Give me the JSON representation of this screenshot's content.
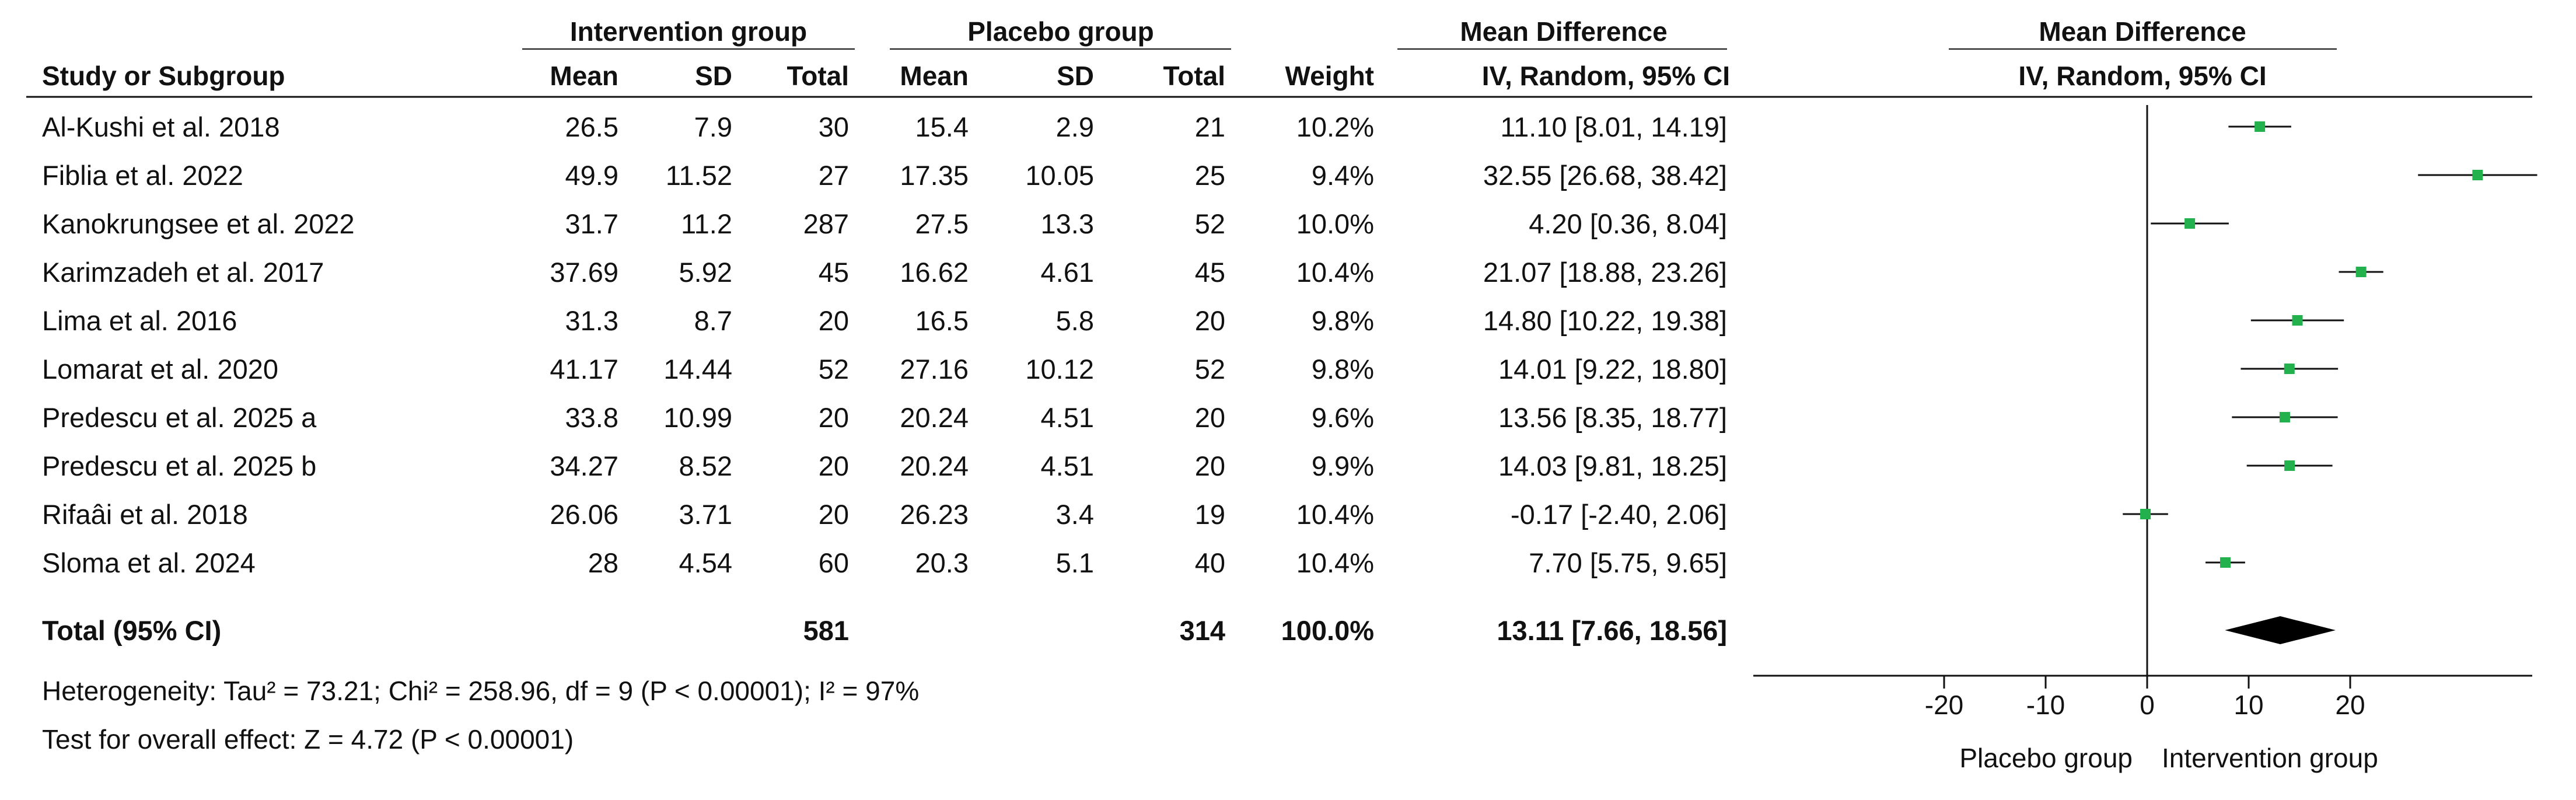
{
  "table": {
    "group_headers": {
      "intervention": "Intervention group",
      "placebo": "Placebo group",
      "effect": "Mean Difference",
      "plot": "Mean Difference"
    },
    "column_headers": {
      "study": "Study or Subgroup",
      "int_mean": "Mean",
      "int_sd": "SD",
      "int_total": "Total",
      "pla_mean": "Mean",
      "pla_sd": "SD",
      "pla_total": "Total",
      "weight": "Weight",
      "ci": "IV, Random, 95% CI",
      "plot_ci": "IV, Random, 95% CI"
    },
    "rows": [
      {
        "study": "Al-Kushi et al. 2018",
        "int_mean": "26.5",
        "int_sd": "7.9",
        "int_total": "30",
        "pla_mean": "15.4",
        "pla_sd": "2.9",
        "pla_total": "21",
        "weight": "10.2%",
        "ci_text": "11.10 [8.01, 14.19]"
      },
      {
        "study": "Fiblia et al. 2022",
        "int_mean": "49.9",
        "int_sd": "11.52",
        "int_total": "27",
        "pla_mean": "17.35",
        "pla_sd": "10.05",
        "pla_total": "25",
        "weight": "9.4%",
        "ci_text": "32.55 [26.68, 38.42]"
      },
      {
        "study": "Kanokrungsee et al. 2022",
        "int_mean": "31.7",
        "int_sd": "11.2",
        "int_total": "287",
        "pla_mean": "27.5",
        "pla_sd": "13.3",
        "pla_total": "52",
        "weight": "10.0%",
        "ci_text": "4.20 [0.36, 8.04]"
      },
      {
        "study": "Karimzadeh et al. 2017",
        "int_mean": "37.69",
        "int_sd": "5.92",
        "int_total": "45",
        "pla_mean": "16.62",
        "pla_sd": "4.61",
        "pla_total": "45",
        "weight": "10.4%",
        "ci_text": "21.07 [18.88, 23.26]"
      },
      {
        "study": "Lima et al. 2016",
        "int_mean": "31.3",
        "int_sd": "8.7",
        "int_total": "20",
        "pla_mean": "16.5",
        "pla_sd": "5.8",
        "pla_total": "20",
        "weight": "9.8%",
        "ci_text": "14.80 [10.22, 19.38]"
      },
      {
        "study": "Lomarat et al. 2020",
        "int_mean": "41.17",
        "int_sd": "14.44",
        "int_total": "52",
        "pla_mean": "27.16",
        "pla_sd": "10.12",
        "pla_total": "52",
        "weight": "9.8%",
        "ci_text": "14.01 [9.22, 18.80]"
      },
      {
        "study": "Predescu et al. 2025 a",
        "int_mean": "33.8",
        "int_sd": "10.99",
        "int_total": "20",
        "pla_mean": "20.24",
        "pla_sd": "4.51",
        "pla_total": "20",
        "weight": "9.6%",
        "ci_text": "13.56 [8.35, 18.77]"
      },
      {
        "study": "Predescu et al. 2025 b",
        "int_mean": "34.27",
        "int_sd": "8.52",
        "int_total": "20",
        "pla_mean": "20.24",
        "pla_sd": "4.51",
        "pla_total": "20",
        "weight": "9.9%",
        "ci_text": "14.03 [9.81, 18.25]"
      },
      {
        "study": "Rifaâi et al. 2018",
        "int_mean": "26.06",
        "int_sd": "3.71",
        "int_total": "20",
        "pla_mean": "26.23",
        "pla_sd": "3.4",
        "pla_total": "19",
        "weight": "10.4%",
        "ci_text": "-0.17 [-2.40, 2.06]"
      },
      {
        "study": "Sloma et al. 2024",
        "int_mean": "28",
        "int_sd": "4.54",
        "int_total": "60",
        "pla_mean": "20.3",
        "pla_sd": "5.1",
        "pla_total": "40",
        "weight": "10.4%",
        "ci_text": "7.70 [5.75, 9.65]"
      }
    ],
    "total": {
      "label": "Total (95% CI)",
      "int_total": "581",
      "pla_total": "314",
      "weight": "100.0%",
      "ci_text": "13.11 [7.66, 18.56]"
    },
    "heterogeneity": "Heterogeneity: Tau² = 73.21; Chi² = 258.96, df = 9 (P < 0.00001); I² = 97%",
    "overall_effect": "Test for overall effect: Z = 4.72 (P < 0.00001)"
  },
  "chart_data": {
    "type": "forest",
    "studies": [
      {
        "name": "Al-Kushi et al. 2018",
        "mean_diff": 11.1,
        "ci_low": 8.01,
        "ci_high": 14.19,
        "weight": 10.2
      },
      {
        "name": "Fiblia et al. 2022",
        "mean_diff": 32.55,
        "ci_low": 26.68,
        "ci_high": 38.42,
        "weight": 9.4
      },
      {
        "name": "Kanokrungsee et al. 2022",
        "mean_diff": 4.2,
        "ci_low": 0.36,
        "ci_high": 8.04,
        "weight": 10.0
      },
      {
        "name": "Karimzadeh et al. 2017",
        "mean_diff": 21.07,
        "ci_low": 18.88,
        "ci_high": 23.26,
        "weight": 10.4
      },
      {
        "name": "Lima et al. 2016",
        "mean_diff": 14.8,
        "ci_low": 10.22,
        "ci_high": 19.38,
        "weight": 9.8
      },
      {
        "name": "Lomarat et al. 2020",
        "mean_diff": 14.01,
        "ci_low": 9.22,
        "ci_high": 18.8,
        "weight": 9.8
      },
      {
        "name": "Predescu et al. 2025 a",
        "mean_diff": 13.56,
        "ci_low": 8.35,
        "ci_high": 18.77,
        "weight": 9.6
      },
      {
        "name": "Predescu et al. 2025 b",
        "mean_diff": 14.03,
        "ci_low": 9.81,
        "ci_high": 18.25,
        "weight": 9.9
      },
      {
        "name": "Rifaâi et al. 2018",
        "mean_diff": -0.17,
        "ci_low": -2.4,
        "ci_high": 2.06,
        "weight": 10.4
      },
      {
        "name": "Sloma et al. 2024",
        "mean_diff": 7.7,
        "ci_low": 5.75,
        "ci_high": 9.65,
        "weight": 10.4
      }
    ],
    "pooled": {
      "mean_diff": 13.11,
      "ci_low": 7.66,
      "ci_high": 18.56
    },
    "xlim": [
      -20,
      40
    ],
    "xticks": [
      -20,
      -10,
      0,
      10,
      20
    ],
    "left_label": "Placebo group",
    "right_label": "Intervention group",
    "point_color": "#22b14c",
    "diamond_color": "#000000"
  }
}
